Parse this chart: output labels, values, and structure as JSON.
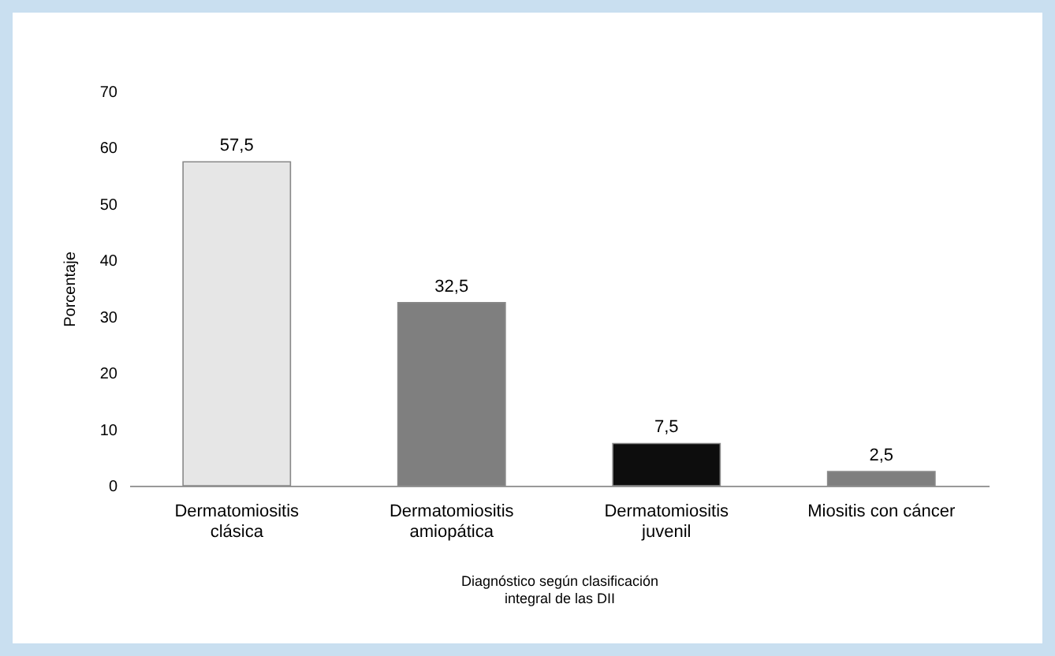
{
  "chart_data": {
    "type": "bar",
    "xlabel": "Diagnóstico según clasificación integral de las DII",
    "ylabel": "Porcentaje",
    "categories": [
      "Dermatomiositis clásica",
      "Dermatomiositis amiopática",
      "Dermatomiositis juvenil",
      "Miositis con cáncer"
    ],
    "values": [
      57.5,
      32.5,
      7.5,
      2.5
    ],
    "colors": [
      "#e6e6e6",
      "#7f7f7f",
      "#0d0d0d",
      "#7f7f7f"
    ],
    "value_labels": [
      "57,5",
      "32,5",
      "7,5",
      "2,5"
    ],
    "ylim": [
      0,
      70
    ],
    "yticks": [
      0,
      10,
      20,
      30,
      40,
      50,
      60,
      70
    ],
    "grid": false,
    "legend": false
  }
}
